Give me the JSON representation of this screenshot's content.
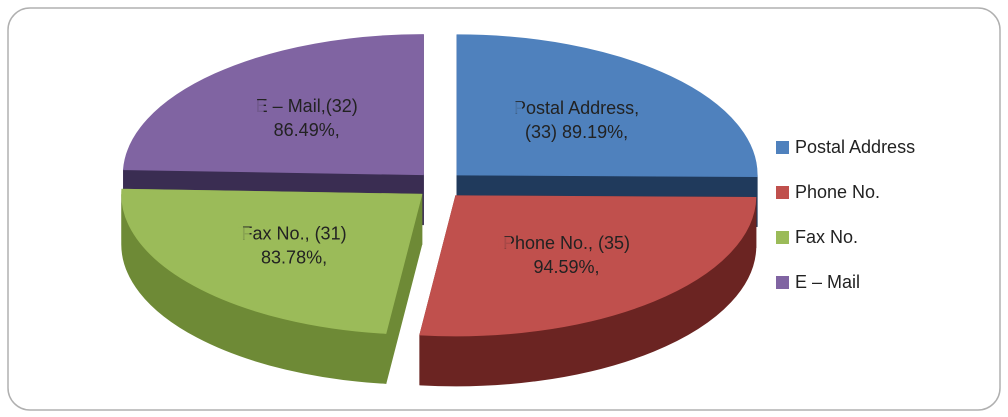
{
  "chart_data": {
    "type": "pie3d",
    "categories": [
      "Postal Address",
      "Phone No.",
      "Fax No.",
      "E – Mail"
    ],
    "values": [
      33,
      35,
      31,
      32
    ],
    "colors": [
      "#4f81bd",
      "#c0504d",
      "#9bbb59",
      "#8064a2"
    ],
    "side_colors": [
      "#203a5c",
      "#6b2422",
      "#6e8a36",
      "#3a2d52"
    ],
    "data_labels": [
      [
        "Postal Address,",
        "(33) 89.19%,"
      ],
      [
        "Phone No., (35)",
        "94.59%,"
      ],
      [
        "Fax No., (31)",
        "83.78%,"
      ],
      [
        "E – Mail,(32)",
        "86.49%,"
      ]
    ],
    "legend": "right"
  }
}
